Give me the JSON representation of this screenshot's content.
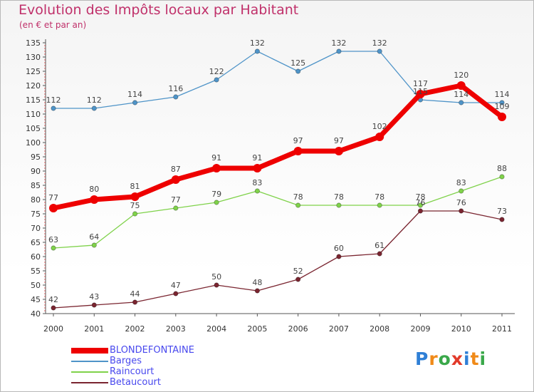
{
  "header": {
    "title": "Evolution des Impôts locaux par Habitant",
    "subtitle": "(en € et par an)"
  },
  "chart_data": {
    "type": "line",
    "title": "Evolution des Impôts locaux par Habitant",
    "subtitle": "(en € et par an)",
    "xlabel": "",
    "ylabel": "",
    "categories": [
      "2000",
      "2001",
      "2002",
      "2003",
      "2004",
      "2005",
      "2006",
      "2007",
      "2008",
      "2009",
      "2010",
      "2011"
    ],
    "ylim": [
      40,
      135
    ],
    "yticks": [
      "40",
      "45",
      "50",
      "55",
      "60",
      "65",
      "70",
      "75",
      "80",
      "85",
      "90",
      "95",
      "100",
      "105",
      "110",
      "115",
      "120",
      "125",
      "130",
      "135"
    ],
    "grid": false,
    "legend_position": "bottom-left",
    "series": [
      {
        "name": "Barges",
        "color": "#4f94c8",
        "values": [
          112,
          112,
          114,
          116,
          122,
          132,
          125,
          132,
          132,
          115,
          114,
          114
        ],
        "labels": [
          "112",
          "112",
          "114",
          "116",
          "122",
          "132",
          "125",
          "132",
          "132",
          "115",
          "114",
          "114"
        ]
      },
      {
        "name": "Raincourt",
        "color": "#7fd24a",
        "values": [
          63,
          64,
          75,
          77,
          79,
          83,
          78,
          78,
          78,
          78,
          83,
          88
        ],
        "labels": [
          "63",
          "64",
          "75",
          "77",
          "79",
          "83",
          "78",
          "78",
          "78",
          "78",
          "83",
          "88"
        ]
      },
      {
        "name": "Betaucourt",
        "color": "#7a2530",
        "values": [
          42,
          43,
          44,
          47,
          50,
          48,
          52,
          60,
          61,
          76,
          76,
          73
        ],
        "labels": [
          "42",
          "43",
          "44",
          "47",
          "50",
          "48",
          "52",
          "60",
          "61",
          "76",
          "76",
          "73"
        ]
      },
      {
        "name": "BLONDEFONTAINE",
        "color": "#ee0000",
        "highlight": true,
        "values": [
          77,
          80,
          81,
          87,
          91,
          91,
          97,
          97,
          102,
          117,
          120,
          109
        ],
        "labels": [
          "77",
          "80",
          "81",
          "87",
          "91",
          "91",
          "97",
          "97",
          "102",
          "117",
          "120",
          "109"
        ]
      }
    ]
  },
  "legend": {
    "items": [
      {
        "label": "BLONDEFONTAINE",
        "color": "#ee0000",
        "text_color": "#4848ee"
      },
      {
        "label": "Barges",
        "color": "#4f94c8",
        "text_color": "#4848ee"
      },
      {
        "label": "Raincourt",
        "color": "#7fd24a",
        "text_color": "#4848ee"
      },
      {
        "label": "Betaucourt",
        "color": "#7a2530",
        "text_color": "#4848ee"
      }
    ]
  },
  "logo": {
    "letters": [
      "P",
      "r",
      "o",
      "x",
      "i",
      "t",
      "i"
    ],
    "colors": [
      "#2f7fd6",
      "#f08a18",
      "#3aa84a",
      "#e23a2a",
      "#2f7fd6",
      "#f08a18",
      "#3aa84a"
    ]
  }
}
